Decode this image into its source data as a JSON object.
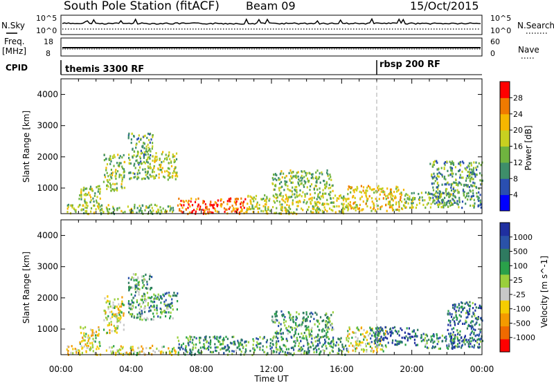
{
  "header": {
    "station": "South Pole Station (fitACF)",
    "beam": "Beam 09",
    "date": "15/Oct/2015"
  },
  "top_panels": {
    "nsky_label": "N.Sky",
    "nsearch_label": "N.Search",
    "freq_label": "Freq.",
    "freq_unit": "[MHz]",
    "nave_label": "Nave",
    "cpid_label": "CPID",
    "noise_ticks": [
      "10^5",
      "10^0"
    ],
    "freq_ticks": [
      "18",
      "8"
    ],
    "nave_ticks": [
      "60",
      "0"
    ],
    "cpid_modes": [
      {
        "label": "themis 3300 RF",
        "start_hour": 0
      },
      {
        "label": "rbsp 200 RF",
        "start_hour": 18
      }
    ]
  },
  "time_axis": {
    "label": "Time UT",
    "ticks": [
      "00:00",
      "04:00",
      "08:00",
      "12:00",
      "16:00",
      "20:00",
      "00:00"
    ]
  },
  "colors": {
    "power_scale": [
      "#0000ff",
      "#2a4fb0",
      "#3e8e6a",
      "#6fb33f",
      "#c8d020",
      "#f6b700",
      "#f07a00",
      "#ff0000"
    ],
    "velocity_scale": [
      "#ff0000",
      "#f06a00",
      "#f49a00",
      "#f5cc00",
      "#c8c8c8",
      "#9acf3c",
      "#2aa14a",
      "#2f7a60",
      "#2a52a8",
      "#1f2fa0"
    ]
  },
  "chart_data": [
    {
      "type": "heatmap",
      "name": "power",
      "ylabel": "Slant Range [km]",
      "xlabel": "",
      "ylim": [
        180,
        4500
      ],
      "yticks": [
        "1000",
        "2000",
        "3000",
        "4000"
      ],
      "xlim": [
        0,
        24
      ],
      "colorbar": {
        "label": "Power [dB]",
        "range": [
          0,
          30
        ],
        "ticks": [
          "4",
          "8",
          "12",
          "16",
          "20",
          "24",
          "28"
        ]
      },
      "regions": [
        {
          "t": [
            0.3,
            6.6
          ],
          "r": [
            200,
            500
          ],
          "level": 0.45
        },
        {
          "t": [
            1.0,
            2.2
          ],
          "r": [
            400,
            1100
          ],
          "level": 0.5
        },
        {
          "t": [
            2.4,
            3.6
          ],
          "r": [
            900,
            2100
          ],
          "level": 0.45
        },
        {
          "t": [
            3.8,
            5.2
          ],
          "r": [
            1300,
            2800
          ],
          "level": 0.4
        },
        {
          "t": [
            5.2,
            6.6
          ],
          "r": [
            1300,
            2200
          ],
          "level": 0.55
        },
        {
          "t": [
            6.6,
            10.5
          ],
          "r": [
            200,
            700
          ],
          "level": 0.9
        },
        {
          "t": [
            10.5,
            16.3
          ],
          "r": [
            200,
            800
          ],
          "level": 0.55
        },
        {
          "t": [
            12.0,
            15.5
          ],
          "r": [
            800,
            1600
          ],
          "level": 0.45
        },
        {
          "t": [
            16.3,
            19.5
          ],
          "r": [
            300,
            1100
          ],
          "level": 0.65
        },
        {
          "t": [
            19.5,
            22.3
          ],
          "r": [
            400,
            900
          ],
          "level": 0.45
        },
        {
          "t": [
            21.0,
            24.0
          ],
          "r": [
            400,
            1900
          ],
          "level": 0.35
        }
      ]
    },
    {
      "type": "heatmap",
      "name": "velocity",
      "ylabel": "Slant Range [km]",
      "xlabel": "Time UT",
      "ylim": [
        180,
        4500
      ],
      "yticks": [
        "1000",
        "2000",
        "3000",
        "4000"
      ],
      "xlim": [
        0,
        24
      ],
      "colorbar": {
        "label": "Velocity [m s^-1]",
        "range": [
          -1500,
          1500
        ],
        "ticks": [
          "1000",
          "500",
          "100",
          "25",
          "-25",
          "-100",
          "-500",
          "-1000"
        ]
      },
      "regions": [
        {
          "t": [
            0.3,
            6.6
          ],
          "r": [
            200,
            500
          ],
          "level": 0.42
        },
        {
          "t": [
            1.0,
            2.2
          ],
          "r": [
            400,
            1100
          ],
          "level": 0.4
        },
        {
          "t": [
            2.4,
            3.6
          ],
          "r": [
            900,
            2100
          ],
          "level": 0.45
        },
        {
          "t": [
            3.8,
            5.2
          ],
          "r": [
            1300,
            2800
          ],
          "level": 0.65
        },
        {
          "t": [
            5.2,
            6.6
          ],
          "r": [
            1300,
            2200
          ],
          "level": 0.7
        },
        {
          "t": [
            6.6,
            16.3
          ],
          "r": [
            200,
            800
          ],
          "level": 0.72
        },
        {
          "t": [
            12.0,
            15.5
          ],
          "r": [
            800,
            1600
          ],
          "level": 0.68
        },
        {
          "t": [
            16.3,
            18.5
          ],
          "r": [
            300,
            1100
          ],
          "level": 0.45
        },
        {
          "t": [
            17.5,
            20.5
          ],
          "r": [
            500,
            1100
          ],
          "level": 0.85
        },
        {
          "t": [
            20.5,
            22.5
          ],
          "r": [
            400,
            900
          ],
          "level": 0.7
        },
        {
          "t": [
            22.0,
            24.0
          ],
          "r": [
            400,
            1900
          ],
          "level": 0.8
        }
      ]
    }
  ]
}
